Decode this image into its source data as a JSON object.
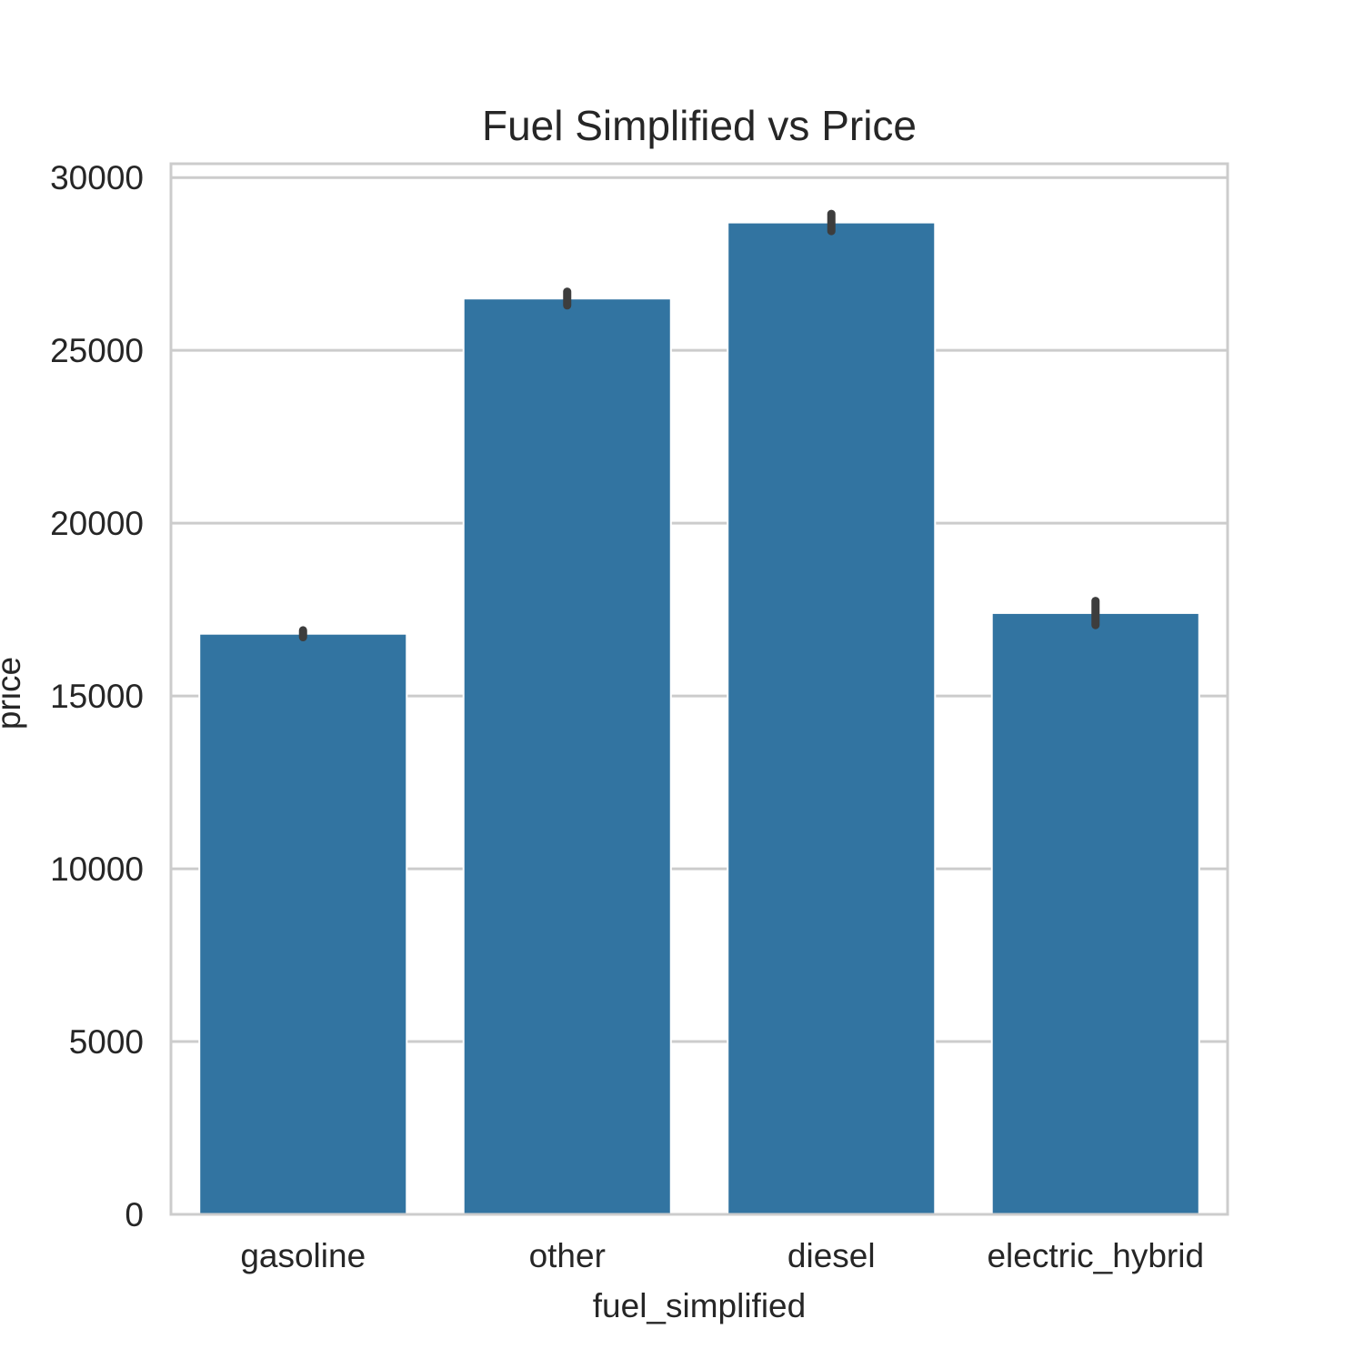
{
  "chart_data": {
    "type": "bar",
    "title": "Fuel Simplified vs Price",
    "xlabel": "fuel_simplified",
    "ylabel": "price",
    "categories": [
      "gasoline",
      "other",
      "diesel",
      "electric_hybrid"
    ],
    "values": [
      16800,
      26500,
      28700,
      17400
    ],
    "error_bars": [
      [
        16700,
        16900
      ],
      [
        26300,
        26700
      ],
      [
        28450,
        28950
      ],
      [
        17050,
        17750
      ]
    ],
    "ylim": [
      0,
      30400
    ],
    "yticks": [
      0,
      5000,
      10000,
      15000,
      20000,
      25000,
      30000
    ],
    "ytick_labels": [
      "0",
      "5000",
      "10000",
      "15000",
      "20000",
      "25000",
      "30000"
    ],
    "grid": true,
    "bar_color": "#3274a1",
    "error_color": "#3d3d3d",
    "grid_color": "#cccccc",
    "frame_color": "#cccccc"
  }
}
